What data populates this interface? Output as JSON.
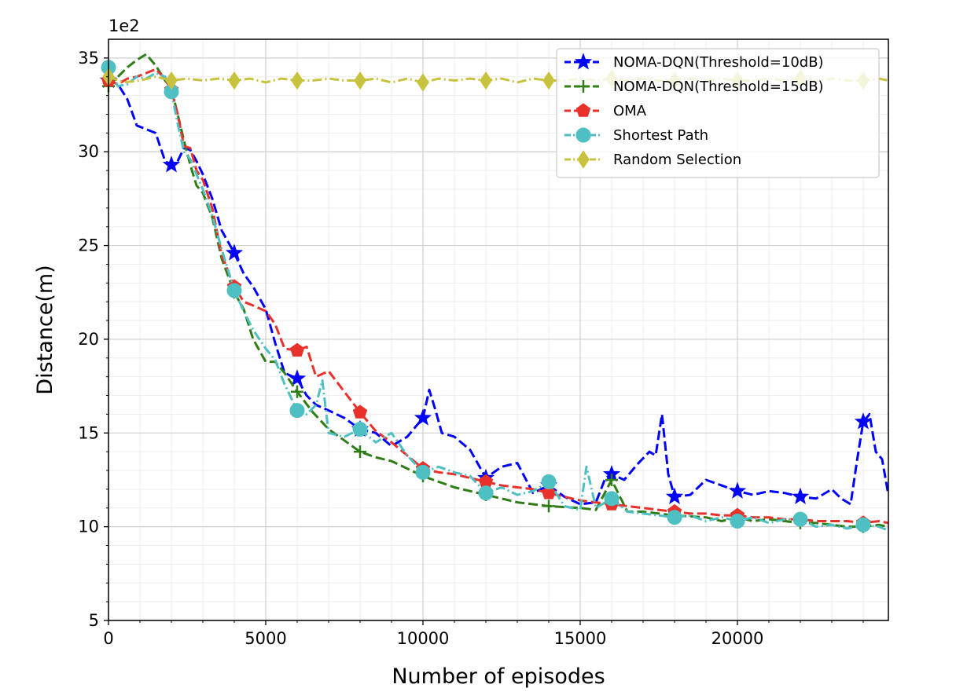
{
  "chart_data": {
    "type": "line",
    "title": "",
    "xlabel": "Number of episodes",
    "ylabel": "Distance(m)",
    "y_offset_text": "1e2",
    "xlim": [
      0,
      24800
    ],
    "ylim": [
      5,
      36
    ],
    "xticks": [
      0,
      5000,
      10000,
      15000,
      20000
    ],
    "xtick_labels": [
      "0",
      "5000",
      "10000",
      "15000",
      "20000"
    ],
    "yticks": [
      5,
      10,
      15,
      20,
      25,
      30,
      35
    ],
    "ytick_labels": [
      "5",
      "10",
      "15",
      "20",
      "25",
      "30",
      "35"
    ],
    "grid": true,
    "minor_grid": true,
    "legend_position": "top-right",
    "series": [
      {
        "name": "NOMA-DQN(Threshold=10dB)",
        "color": "#0000ff",
        "marker": "star",
        "dash": "dashed",
        "x": [
          0,
          300,
          600,
          900,
          1200,
          1500,
          1800,
          2000,
          2200,
          2400,
          2600,
          2800,
          3000,
          3300,
          3600,
          4000,
          4300,
          4600,
          5000,
          5300,
          5600,
          6000,
          6300,
          6600,
          7000,
          7500,
          8000,
          8500,
          9000,
          9500,
          10000,
          10200,
          10400,
          10600,
          11000,
          11500,
          12000,
          12500,
          13000,
          13500,
          14000,
          14500,
          15000,
          15500,
          15800,
          16000,
          16400,
          16800,
          17200,
          17400,
          17600,
          17800,
          18000,
          18500,
          19000,
          19500,
          20000,
          20500,
          21000,
          21500,
          22000,
          22500,
          23000,
          23300,
          23600,
          23800,
          24000,
          24200,
          24400,
          24600,
          24800
        ],
        "y": [
          33.8,
          33.6,
          32.8,
          31.4,
          31.2,
          31.0,
          29.5,
          29.3,
          29.5,
          30.2,
          30.1,
          29.5,
          28.8,
          27.5,
          25.8,
          24.6,
          23.5,
          22.8,
          21.6,
          19.8,
          18.2,
          17.9,
          17.0,
          16.5,
          16.2,
          15.8,
          15.2,
          15.0,
          14.3,
          14.8,
          15.8,
          17.3,
          16.2,
          15.0,
          14.8,
          14.1,
          12.6,
          13.2,
          13.4,
          11.8,
          12.2,
          11.6,
          11.2,
          11.3,
          12.6,
          12.8,
          12.5,
          13.3,
          14.0,
          13.8,
          16.0,
          12.8,
          11.6,
          11.7,
          12.5,
          12.2,
          11.9,
          11.7,
          11.9,
          11.8,
          11.6,
          11.5,
          12.0,
          11.5,
          11.2,
          13.5,
          15.6,
          16.0,
          14.0,
          13.6,
          11.7
        ]
      },
      {
        "name": "NOMA-DQN(Threshold=15dB)",
        "color": "#2e7d17",
        "marker": "plus",
        "dash": "dashed",
        "x": [
          0,
          300,
          600,
          900,
          1200,
          1500,
          1800,
          2000,
          2200,
          2400,
          2600,
          2800,
          3000,
          3300,
          3600,
          4000,
          4300,
          4600,
          5000,
          5300,
          5600,
          6000,
          6500,
          7000,
          7500,
          8000,
          8500,
          9000,
          9500,
          10000,
          10500,
          11000,
          11500,
          12000,
          12500,
          13000,
          14000,
          15000,
          15500,
          16000,
          16500,
          17000,
          18000,
          19000,
          19500,
          20000,
          20500,
          21000,
          22000,
          22500,
          23000,
          23500,
          24000,
          24500,
          24800
        ],
        "y": [
          33.5,
          34.0,
          34.5,
          34.9,
          35.2,
          34.6,
          33.8,
          33.4,
          32.0,
          30.6,
          29.3,
          28.2,
          27.8,
          26.5,
          24.3,
          22.5,
          21.6,
          20.0,
          18.8,
          18.8,
          18.2,
          17.2,
          16.1,
          15.2,
          14.6,
          14.0,
          13.7,
          13.5,
          13.1,
          12.7,
          12.4,
          12.1,
          11.9,
          11.7,
          11.5,
          11.3,
          11.1,
          11.0,
          10.9,
          12.5,
          10.8,
          10.8,
          10.6,
          10.5,
          10.3,
          10.5,
          10.3,
          10.4,
          10.2,
          10.2,
          10.1,
          10.0,
          10.0,
          10.1,
          10.0
        ]
      },
      {
        "name": "OMA",
        "color": "#e8312b",
        "marker": "pentagon",
        "dash": "dashed",
        "x": [
          0,
          300,
          600,
          900,
          1200,
          1500,
          1800,
          2000,
          2200,
          2400,
          2600,
          2800,
          3000,
          3300,
          3600,
          4000,
          4300,
          4600,
          5000,
          5300,
          5600,
          6000,
          6300,
          6600,
          7000,
          7500,
          8000,
          8500,
          9000,
          9500,
          10000,
          10500,
          11000,
          11500,
          12000,
          12500,
          13000,
          13500,
          14000,
          14500,
          15000,
          15500,
          16000,
          16500,
          17000,
          17500,
          18000,
          18500,
          19000,
          19500,
          20000,
          20500,
          21000,
          21500,
          22000,
          22500,
          23000,
          23500,
          24000,
          24500,
          24800
        ],
        "y": [
          33.8,
          33.6,
          33.9,
          34.0,
          34.2,
          34.4,
          33.9,
          33.3,
          32.0,
          30.3,
          30.2,
          29.0,
          28.5,
          27.0,
          24.5,
          22.8,
          22.0,
          21.8,
          21.5,
          20.8,
          19.5,
          19.4,
          19.6,
          18.0,
          18.3,
          17.2,
          16.1,
          15.1,
          14.5,
          13.8,
          13.1,
          12.9,
          12.8,
          12.6,
          12.4,
          12.2,
          12.1,
          12.0,
          11.8,
          11.6,
          11.4,
          11.3,
          11.2,
          11.1,
          11.0,
          10.9,
          10.8,
          10.7,
          10.7,
          10.6,
          10.6,
          10.5,
          10.5,
          10.4,
          10.4,
          10.3,
          10.3,
          10.3,
          10.2,
          10.3,
          10.2
        ]
      },
      {
        "name": "Shortest Path",
        "color": "#4ebfc2",
        "marker": "circle",
        "dash": "dashdot",
        "x": [
          0,
          300,
          600,
          900,
          1200,
          1500,
          1800,
          2000,
          2200,
          2400,
          2600,
          2800,
          3000,
          3300,
          3600,
          4000,
          4300,
          4600,
          5000,
          5300,
          5600,
          6000,
          6300,
          6600,
          6800,
          7000,
          7500,
          8000,
          8500,
          9000,
          9500,
          10000,
          10500,
          11000,
          11500,
          12000,
          12500,
          13000,
          13500,
          14000,
          14500,
          15000,
          15200,
          15500,
          16000,
          16500,
          17000,
          17500,
          18000,
          18500,
          19000,
          19500,
          20000,
          20500,
          21000,
          21500,
          22000,
          22500,
          23000,
          23500,
          24000,
          24500,
          24800
        ],
        "y": [
          34.5,
          33.5,
          33.6,
          34.0,
          33.9,
          34.2,
          34.0,
          33.2,
          31.5,
          30.0,
          29.6,
          28.8,
          28.0,
          26.6,
          24.8,
          22.6,
          21.5,
          20.5,
          19.5,
          18.9,
          17.6,
          16.2,
          16.0,
          16.5,
          17.8,
          15.0,
          14.8,
          15.2,
          14.5,
          15.0,
          13.8,
          12.9,
          13.2,
          12.9,
          12.7,
          11.8,
          12.1,
          11.7,
          11.9,
          12.4,
          11.1,
          10.9,
          13.2,
          11.0,
          11.5,
          10.8,
          10.7,
          10.6,
          10.5,
          10.6,
          10.3,
          10.5,
          10.3,
          10.5,
          10.2,
          10.4,
          10.4,
          10.0,
          10.1,
          9.9,
          10.1,
          10.0,
          9.8
        ]
      },
      {
        "name": "Random Selection",
        "color": "#c8c33e",
        "marker": "diamond",
        "dash": "dashdot",
        "x": [
          0,
          500,
          1000,
          1500,
          2000,
          2500,
          3000,
          3500,
          4000,
          4500,
          5000,
          5500,
          6000,
          6500,
          7000,
          7500,
          8000,
          8500,
          9000,
          9500,
          10000,
          10500,
          11000,
          11500,
          12000,
          12500,
          13000,
          13500,
          14000,
          14500,
          15000,
          15500,
          16000,
          16500,
          17000,
          17500,
          18000,
          18500,
          19000,
          19500,
          20000,
          20500,
          21000,
          21500,
          22000,
          22500,
          23000,
          23500,
          24000,
          24500,
          24800
        ],
        "y": [
          34.0,
          33.7,
          33.8,
          34.0,
          33.8,
          33.9,
          33.8,
          33.9,
          33.8,
          33.9,
          33.7,
          33.9,
          33.8,
          33.8,
          33.9,
          33.8,
          33.8,
          33.9,
          33.7,
          33.9,
          33.7,
          33.9,
          33.8,
          33.9,
          33.8,
          33.9,
          33.7,
          33.9,
          33.8,
          33.8,
          33.9,
          33.8,
          33.9,
          33.8,
          33.9,
          33.8,
          33.8,
          33.9,
          33.8,
          33.9,
          33.8,
          33.8,
          33.9,
          33.8,
          33.9,
          33.8,
          33.9,
          33.8,
          33.8,
          33.9,
          33.8
        ]
      }
    ]
  }
}
